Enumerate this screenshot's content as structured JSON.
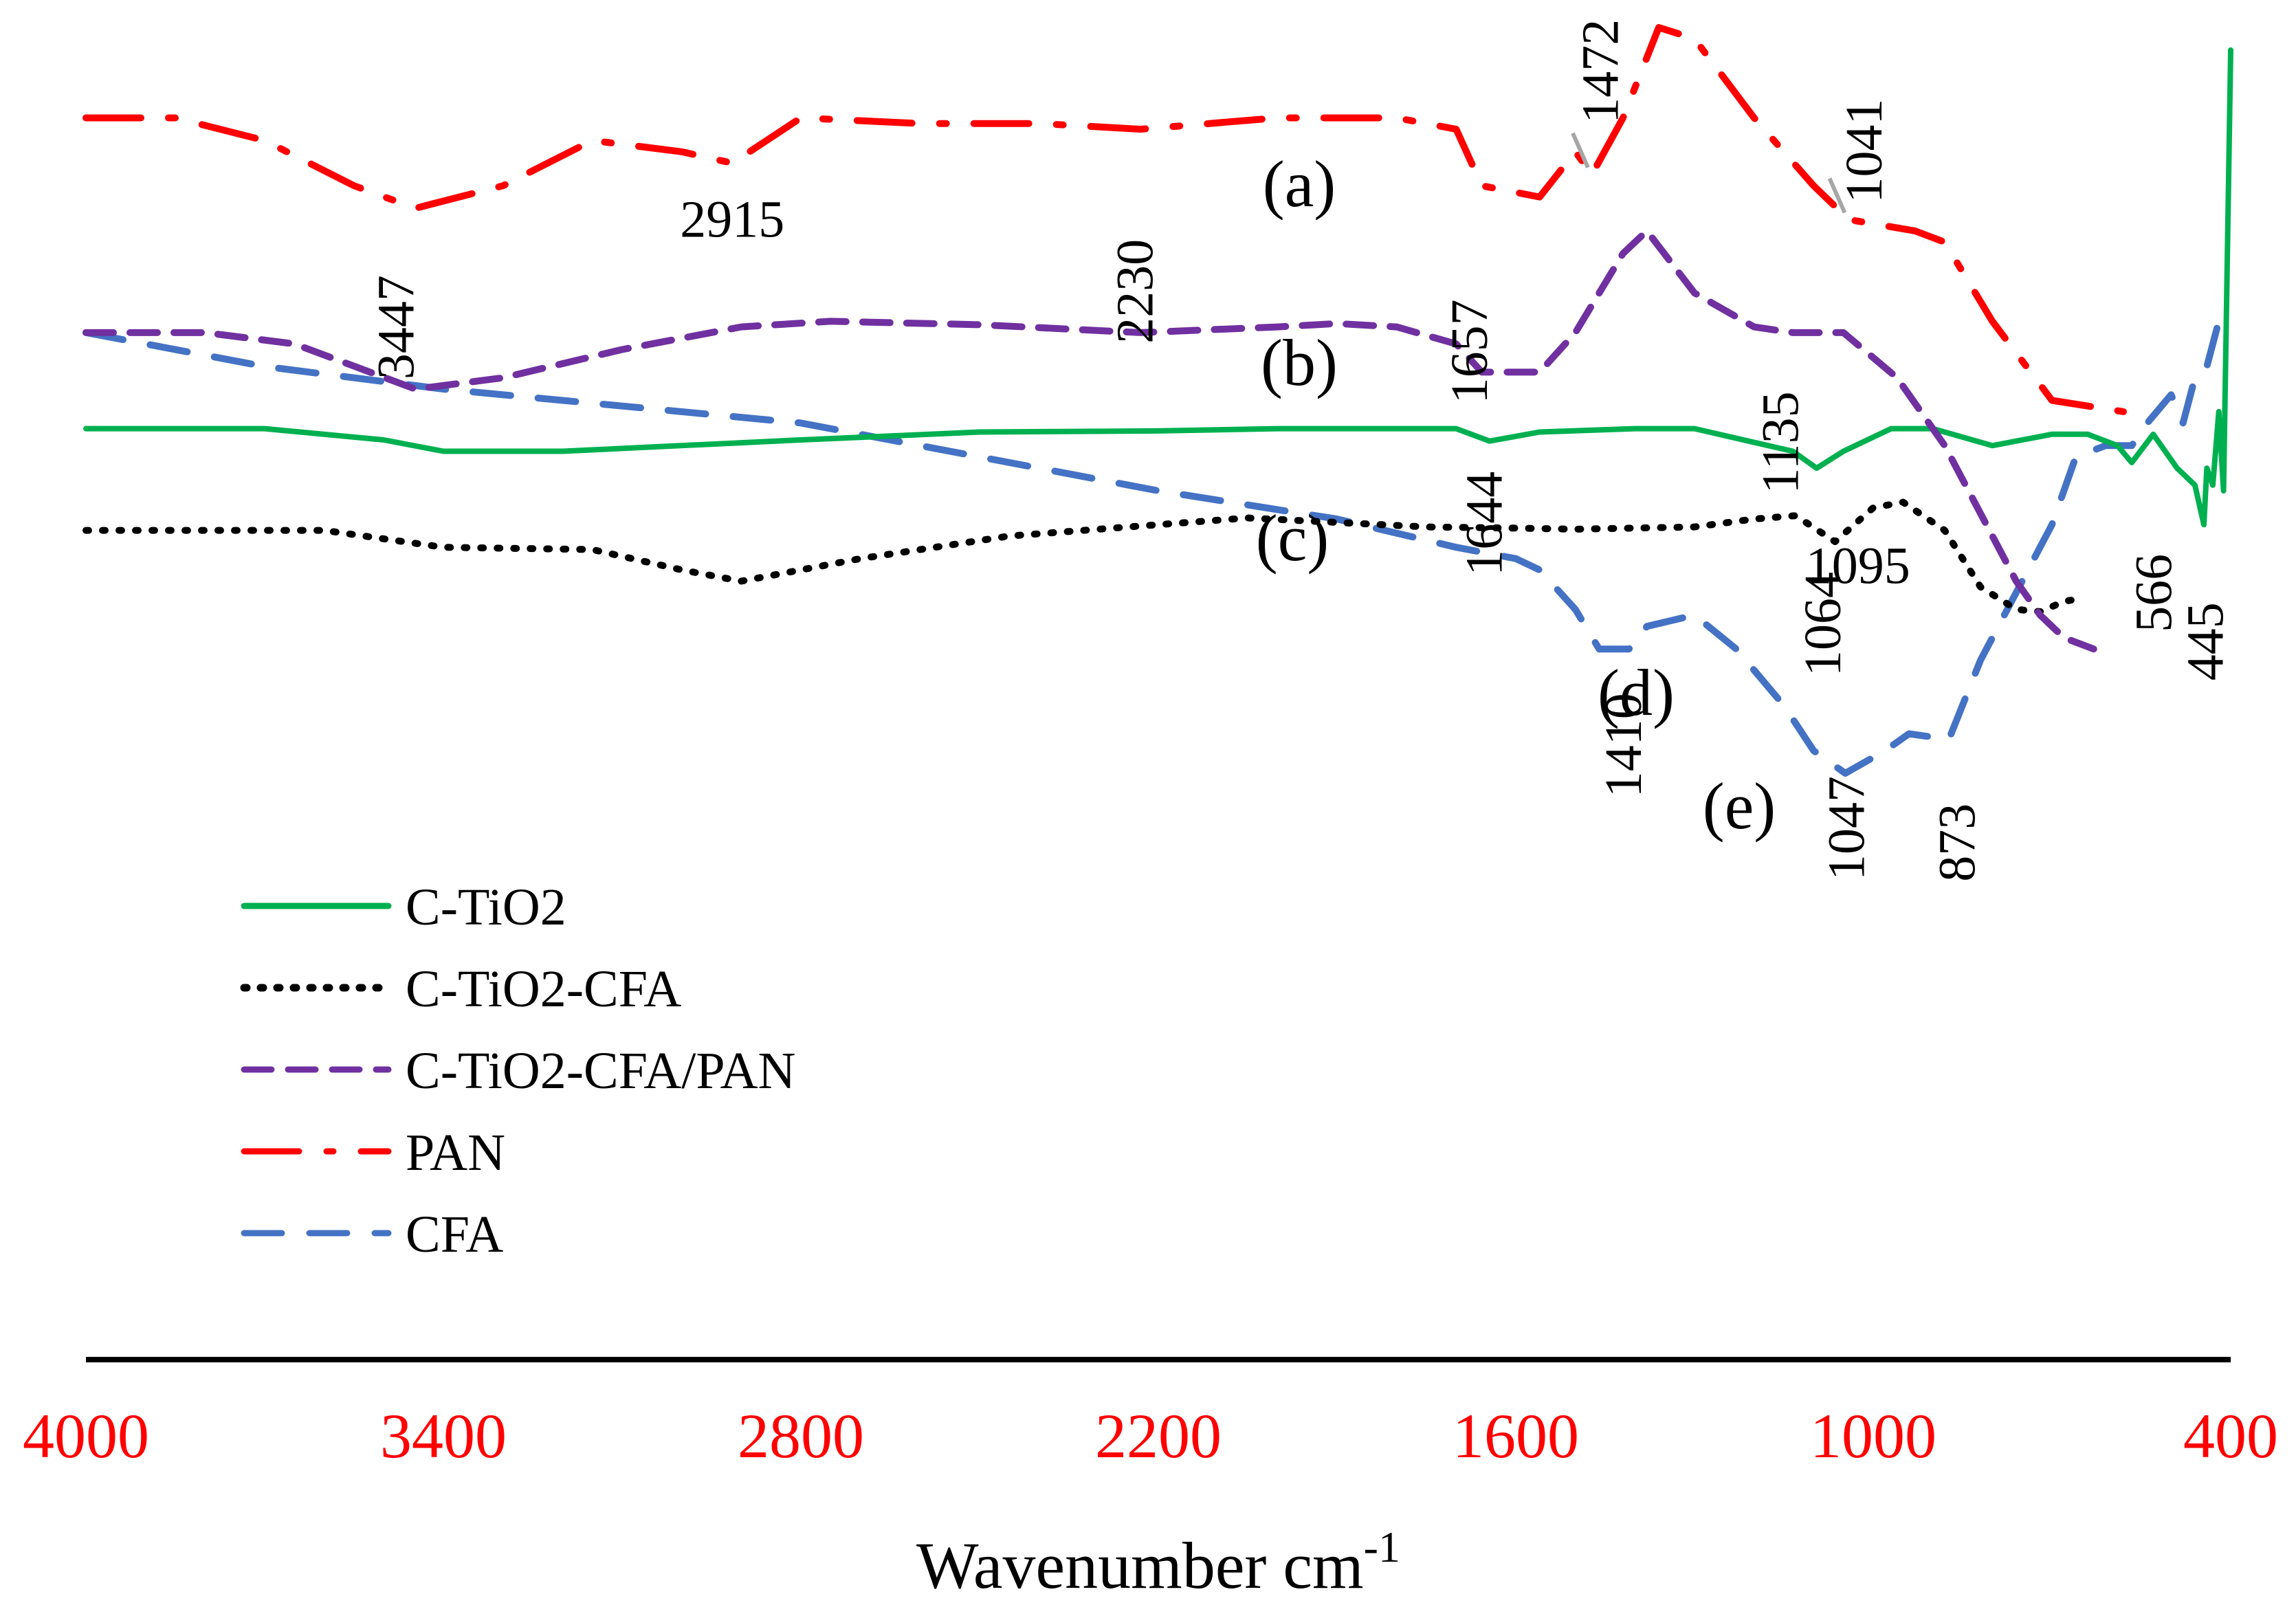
{
  "chart_data": {
    "type": "line",
    "title": "",
    "xlabel": "Wavenumber cm",
    "xlabel_superscript": "-1",
    "ylabel": "",
    "xlim": [
      4000,
      400
    ],
    "x_reversed": true,
    "grid": false,
    "x_ticks": [
      "4000",
      "3400",
      "2800",
      "2200",
      "1600",
      "1000",
      "400"
    ],
    "tick_color": "#ff0000",
    "legend_position": "bottom-left",
    "legend": [
      {
        "label": "C-TiO2",
        "color": "#00b050",
        "dash": "solid"
      },
      {
        "label": "C-TiO2-CFA",
        "color": "#000000",
        "dash": "dotted"
      },
      {
        "label": "C-TiO2-CFA/PAN",
        "color": "#7030a0",
        "dash": "dashed"
      },
      {
        "label": "PAN",
        "color": "#ff0000",
        "dash": "dashdot"
      },
      {
        "label": "CFA",
        "color": "#4472c4",
        "dash": "longdash"
      }
    ],
    "series": [
      {
        "name": "PAN",
        "curve_label": "(a)",
        "color": "#ff0000",
        "x": [
          4000,
          3850,
          3700,
          3550,
          3447,
          3300,
          3150,
          3000,
          2915,
          2800,
          2600,
          2400,
          2230,
          2000,
          1800,
          1700,
          1657,
          1560,
          1500,
          1472,
          1420,
          1360,
          1300,
          1200,
          1100,
          1041,
          930,
          880,
          800,
          700,
          580
        ],
        "y": [
          82,
          82,
          80,
          76,
          74,
          76,
          80,
          79,
          78,
          82,
          81.5,
          81.5,
          81,
          82,
          82,
          81,
          76,
          75,
          79,
          77,
          82,
          90,
          89,
          82,
          76,
          73,
          72,
          71,
          64,
          57,
          56
        ]
      },
      {
        "name": "C-TiO2-CFA/PAN",
        "curve_label": "(b)",
        "color": "#7030a0",
        "x": [
          4000,
          3800,
          3650,
          3447,
          3300,
          3100,
          2900,
          2750,
          2500,
          2230,
          2000,
          1900,
          1800,
          1700,
          1657,
          1560,
          1500,
          1420,
          1380,
          1300,
          1200,
          1135,
          1050,
          960,
          880,
          820,
          760,
          720,
          680,
          630
        ],
        "y": [
          63,
          63,
          62,
          58,
          59,
          61.5,
          63.5,
          64,
          63.7,
          63,
          63.5,
          63.8,
          63.5,
          62,
          59.5,
          59.5,
          63,
          70,
          72,
          66.5,
          63.5,
          63,
          63,
          59,
          53,
          47,
          41,
          38,
          36,
          35
        ]
      },
      {
        "name": "C-TiO2",
        "curve_label": "(c)",
        "color": "#00b050",
        "x": [
          4000,
          3700,
          3500,
          3400,
          3200,
          2800,
          2500,
          2200,
          2000,
          1700,
          1644,
          1560,
          1400,
          1300,
          1135,
          1095,
          1050,
          970,
          900,
          800,
          700,
          640,
          590,
          566,
          530,
          490,
          460,
          445,
          440,
          430,
          420,
          412,
          400
        ],
        "y": [
          54.5,
          54.5,
          53.5,
          52.5,
          52.5,
          53.5,
          54.2,
          54.3,
          54.5,
          54.5,
          53.4,
          54.2,
          54.5,
          54.5,
          52.5,
          51,
          52.5,
          54.5,
          54.5,
          53,
          54,
          54,
          53,
          51.5,
          54,
          51,
          49.5,
          46,
          51,
          49.5,
          56,
          49,
          88
        ]
      },
      {
        "name": "C-TiO2-CFA",
        "curve_label": "(d)",
        "color": "#000000",
        "x": [
          4000,
          3600,
          3400,
          3150,
          3000,
          2900,
          2700,
          2450,
          2200,
          2050,
          1900,
          1750,
          1600,
          1500,
          1300,
          1200,
          1130,
          1064,
          1000,
          950,
          880,
          820,
          760,
          720,
          680,
          650
        ],
        "y": [
          45.5,
          45.5,
          44,
          43.8,
          42,
          41,
          43,
          45,
          46,
          46.6,
          46.2,
          45.8,
          45.7,
          45.6,
          45.8,
          46.5,
          46.8,
          44.5,
          47.5,
          48,
          45.5,
          40.5,
          38.5,
          38.3,
          39.2,
          39.5
        ]
      },
      {
        "name": "CFA",
        "curve_label": "(e)",
        "color": "#4472c4",
        "x": [
          4000,
          3700,
          3400,
          3100,
          2800,
          2500,
          2200,
          1900,
          1700,
          1600,
          1560,
          1500,
          1460,
          1410,
          1380,
          1300,
          1230,
          1150,
          1100,
          1047,
          980,
          940,
          873,
          820,
          760,
          700,
          660,
          610,
          566,
          540,
          500,
          480,
          460,
          440,
          420,
          400
        ],
        "y": [
          63,
          60,
          58,
          56.5,
          55,
          52,
          49,
          46.5,
          44,
          43,
          42,
          38.5,
          35,
          35,
          37,
          38,
          35,
          30,
          26,
          24,
          26,
          27.5,
          27,
          34,
          40,
          46,
          52,
          53,
          53,
          55,
          57.5,
          55,
          59,
          60,
          64,
          65
        ]
      }
    ],
    "curve_labels": [
      "(a)",
      "(b)",
      "(c)",
      "(d)",
      "(e)"
    ],
    "annotations": [
      {
        "text": "3447",
        "x": 3447,
        "rotated": true,
        "series": "C-TiO2-CFA/PAN"
      },
      {
        "text": "2915",
        "x": 2915,
        "rotated": false,
        "series": "PAN"
      },
      {
        "text": "2230",
        "x": 2230,
        "rotated": true,
        "series": "C-TiO2-CFA/PAN"
      },
      {
        "text": "1657",
        "x": 1657,
        "rotated": true,
        "series": "C-TiO2-CFA/PAN"
      },
      {
        "text": "1472",
        "x": 1472,
        "rotated": true,
        "series": "PAN"
      },
      {
        "text": "1041",
        "x": 1041,
        "rotated": true,
        "series": "PAN"
      },
      {
        "text": "1135",
        "x": 1135,
        "rotated": true,
        "series": "C-TiO2-CFA/PAN"
      },
      {
        "text": "1644",
        "x": 1644,
        "rotated": true,
        "series": "C-TiO2"
      },
      {
        "text": "1095",
        "x": 1095,
        "rotated": false,
        "series": "C-TiO2"
      },
      {
        "text": "1064",
        "x": 1064,
        "rotated": true,
        "series": "C-TiO2-CFA"
      },
      {
        "text": "1410",
        "x": 1410,
        "rotated": true,
        "series": "CFA"
      },
      {
        "text": "1047",
        "x": 1047,
        "rotated": true,
        "series": "CFA"
      },
      {
        "text": "873",
        "x": 873,
        "rotated": true,
        "series": "CFA"
      },
      {
        "text": "566",
        "x": 566,
        "rotated": true,
        "series": "C-TiO2"
      },
      {
        "text": "445",
        "x": 445,
        "rotated": true,
        "series": "C-TiO2"
      }
    ]
  }
}
